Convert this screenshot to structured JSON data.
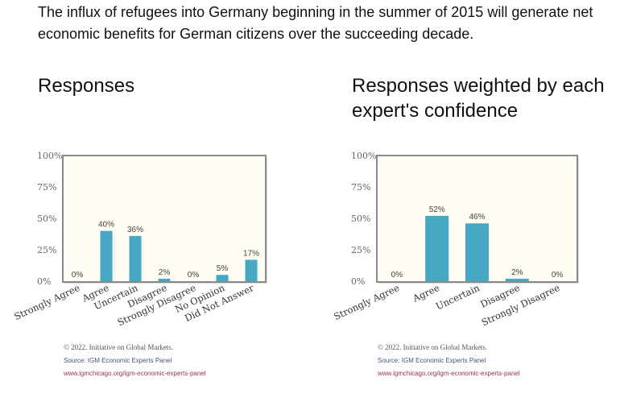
{
  "question": "The influx of refugees into Germany beginning in the summer of 2015 will generate net economic benefits for German citizens over the succeeding decade.",
  "chart_data": [
    {
      "type": "bar",
      "title": "Responses",
      "categories": [
        "Strongly Agree",
        "Agree",
        "Uncertain",
        "Disagree",
        "Strongly Disagree",
        "No Opinion",
        "Did Not Answer"
      ],
      "values": [
        0,
        40,
        36,
        2,
        0,
        5,
        17
      ],
      "value_labels": [
        "0%",
        "40%",
        "36%",
        "2%",
        "0%",
        "5%",
        "17%"
      ],
      "yticks": [
        "0%",
        "25%",
        "50%",
        "75%",
        "100%"
      ],
      "ylim": [
        0,
        100
      ],
      "bar_color": "#47a8c4",
      "footer": {
        "copyright": "© 2022. Initiative on Global Markets.",
        "source": "Source: IGM Economic Experts Panel",
        "url": "www.igmchicago.org/igm-economic-experts-panel"
      }
    },
    {
      "type": "bar",
      "title": "Responses weighted by each expert's confidence",
      "categories": [
        "Strongly Agree",
        "Agree",
        "Uncertain",
        "Disagree",
        "Strongly Disagree"
      ],
      "values": [
        0,
        52,
        46,
        2,
        0
      ],
      "value_labels": [
        "0%",
        "52%",
        "46%",
        "2%",
        "0%"
      ],
      "yticks": [
        "0%",
        "25%",
        "50%",
        "75%",
        "100%"
      ],
      "ylim": [
        0,
        100
      ],
      "bar_color": "#47a8c4",
      "footer": {
        "copyright": "© 2022. Initiative on Global Markets.",
        "source": "Source: IGM Economic Experts Panel",
        "url": "www.igmchicago.org/igm-economic-experts-panel"
      }
    }
  ]
}
